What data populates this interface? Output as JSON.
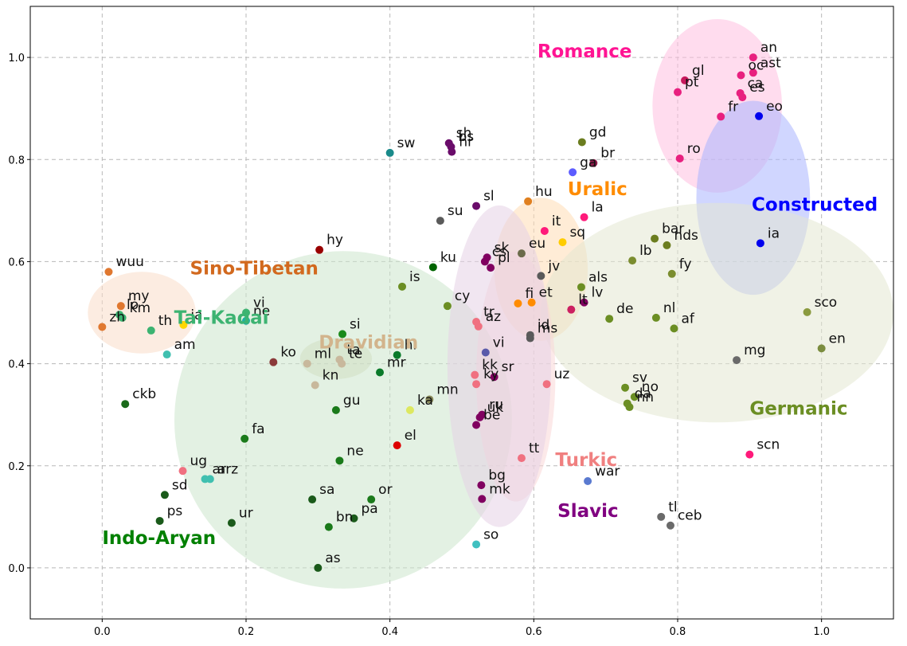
{
  "chart_data": {
    "type": "scatter",
    "title": "",
    "xlabel": "",
    "ylabel": "",
    "xlim": [
      -0.1,
      1.1
    ],
    "ylim": [
      -0.1,
      1.1
    ],
    "grid": true,
    "xticks": [
      "0.0",
      "0.2",
      "0.4",
      "0.6",
      "0.8",
      "1.0"
    ],
    "xtick_values": [
      0.0,
      0.2,
      0.4,
      0.6,
      0.8,
      1.0
    ],
    "yticks": [
      "0.0",
      "0.2",
      "0.4",
      "0.6",
      "0.8",
      "1.0"
    ],
    "ytick_values": [
      0.0,
      0.2,
      0.4,
      0.6,
      0.8,
      1.0
    ],
    "families": [
      {
        "name": "Romance",
        "color": "#ff1493",
        "label_x": 0.605,
        "label_y": 1.0,
        "ellipse": {
          "cx": 0.855,
          "cy": 0.905,
          "rx": 0.09,
          "ry": 0.17,
          "angle": 0,
          "color": "#ffc0e0"
        }
      },
      {
        "name": "Constructed",
        "color": "#0000ff",
        "label_x": 0.903,
        "label_y": 0.7,
        "ellipse": {
          "cx": 0.905,
          "cy": 0.725,
          "rx": 0.079,
          "ry": 0.19,
          "angle": 0,
          "color": "#aab4ff"
        }
      },
      {
        "name": "Uralic",
        "color": "#ff8c00",
        "label_x": 0.647,
        "label_y": 0.73,
        "ellipse": {
          "cx": 0.61,
          "cy": 0.585,
          "rx": 0.065,
          "ry": 0.14,
          "angle": 0,
          "color": "#ffdcb4"
        }
      },
      {
        "name": "Sino-Tibetan",
        "color": "#d2691e",
        "label_x": 0.122,
        "label_y": 0.575,
        "ellipse": {
          "cx": 0.055,
          "cy": 0.5,
          "rx": 0.075,
          "ry": 0.08,
          "angle": 0,
          "color": "#fadcc8"
        }
      },
      {
        "name": "Tai-Kadai",
        "color": "#3cb371",
        "label_x": 0.1,
        "label_y": 0.478,
        "ellipse": null
      },
      {
        "name": "Dravidian",
        "color": "#d2b48c",
        "label_x": 0.301,
        "label_y": 0.43,
        "ellipse": {
          "cx": 0.325,
          "cy": 0.41,
          "rx": 0.05,
          "ry": 0.04,
          "angle": 0,
          "color": "#d6d6b8"
        }
      },
      {
        "name": "Indo-Aryan",
        "color": "#008000",
        "label_x": 0.0,
        "label_y": 0.047,
        "ellipse": {
          "cx": 0.335,
          "cy": 0.29,
          "rx": 0.235,
          "ry": 0.33,
          "angle": 40,
          "color": "#cce6cc"
        }
      },
      {
        "name": "Germanic",
        "color": "#6b8e23",
        "label_x": 0.9,
        "label_y": 0.3,
        "ellipse": {
          "cx": 0.855,
          "cy": 0.5,
          "rx": 0.245,
          "ry": 0.215,
          "angle": 0,
          "color": "#e3e8d2"
        }
      },
      {
        "name": "Turkic",
        "color": "#f08080",
        "label_x": 0.63,
        "label_y": 0.2,
        "ellipse": {
          "cx": 0.575,
          "cy": 0.375,
          "rx": 0.055,
          "ry": 0.245,
          "angle": 0,
          "color": "#fad7d7"
        }
      },
      {
        "name": "Slavic",
        "color": "#800080",
        "label_x": 0.633,
        "label_y": 0.1,
        "ellipse": {
          "cx": 0.552,
          "cy": 0.395,
          "rx": 0.072,
          "ry": 0.315,
          "angle": 0,
          "color": "#e6d2e6"
        }
      }
    ],
    "points": [
      {
        "label": "an",
        "x": 0.905,
        "y": 1.0,
        "color": "#e8207f"
      },
      {
        "label": "ast",
        "x": 0.905,
        "y": 0.97,
        "color": "#e8207f"
      },
      {
        "label": "gl",
        "x": 0.81,
        "y": 0.955,
        "color": "#c7185c"
      },
      {
        "label": "oc",
        "x": 0.888,
        "y": 0.965,
        "color": "#e8207f"
      },
      {
        "label": "pt",
        "x": 0.8,
        "y": 0.932,
        "color": "#e8207f"
      },
      {
        "label": "ca",
        "x": 0.887,
        "y": 0.93,
        "color": "#e8207f"
      },
      {
        "label": "es",
        "x": 0.89,
        "y": 0.922,
        "color": "#e8207f"
      },
      {
        "label": "fr",
        "x": 0.86,
        "y": 0.884,
        "color": "#e8207f"
      },
      {
        "label": "eo",
        "x": 0.913,
        "y": 0.885,
        "color": "#0000ee"
      },
      {
        "label": "ro",
        "x": 0.803,
        "y": 0.802,
        "color": "#e8207f"
      },
      {
        "label": "ia",
        "x": 0.915,
        "y": 0.636,
        "color": "#0000ee"
      },
      {
        "label": "sh",
        "x": 0.482,
        "y": 0.832,
        "color": "#6a0c6a"
      },
      {
        "label": "bs",
        "x": 0.485,
        "y": 0.825,
        "color": "#6a0c6a"
      },
      {
        "label": "hr",
        "x": 0.486,
        "y": 0.815,
        "color": "#6a0c6a"
      },
      {
        "label": "sw",
        "x": 0.4,
        "y": 0.813,
        "color": "#1a8a8a"
      },
      {
        "label": "gd",
        "x": 0.667,
        "y": 0.834,
        "color": "#6b7d1f"
      },
      {
        "label": "br",
        "x": 0.683,
        "y": 0.793,
        "color": "#8b1a4a"
      },
      {
        "label": "ga",
        "x": 0.654,
        "y": 0.775,
        "color": "#5c5cff"
      },
      {
        "label": "sl",
        "x": 0.52,
        "y": 0.709,
        "color": "#6a0c6a"
      },
      {
        "label": "hu",
        "x": 0.592,
        "y": 0.718,
        "color": "#e08020"
      },
      {
        "label": "su",
        "x": 0.47,
        "y": 0.68,
        "color": "#5a5a5a"
      },
      {
        "label": "la",
        "x": 0.67,
        "y": 0.687,
        "color": "#ff1a7a"
      },
      {
        "label": "it",
        "x": 0.615,
        "y": 0.66,
        "color": "#ff1a7a"
      },
      {
        "label": "sq",
        "x": 0.64,
        "y": 0.638,
        "color": "#ffcc00"
      },
      {
        "label": "hy",
        "x": 0.302,
        "y": 0.623,
        "color": "#990000"
      },
      {
        "label": "wuu",
        "x": 0.009,
        "y": 0.58,
        "color": "#e07830"
      },
      {
        "label": "ku",
        "x": 0.46,
        "y": 0.589,
        "color": "#006400"
      },
      {
        "label": "sk",
        "x": 0.535,
        "y": 0.608,
        "color": "#800060"
      },
      {
        "label": "cs",
        "x": 0.532,
        "y": 0.6,
        "color": "#800060"
      },
      {
        "label": "pl",
        "x": 0.54,
        "y": 0.588,
        "color": "#800060"
      },
      {
        "label": "eu",
        "x": 0.583,
        "y": 0.616,
        "color": "#6b6b4b"
      },
      {
        "label": "bar",
        "x": 0.768,
        "y": 0.645,
        "color": "#6b7d1f"
      },
      {
        "label": "nds",
        "x": 0.785,
        "y": 0.632,
        "color": "#6b7d1f"
      },
      {
        "label": "lb",
        "x": 0.737,
        "y": 0.602,
        "color": "#7b8d2f"
      },
      {
        "label": "fy",
        "x": 0.792,
        "y": 0.576,
        "color": "#7b8d2f"
      },
      {
        "label": "jv",
        "x": 0.61,
        "y": 0.572,
        "color": "#5a5a5a"
      },
      {
        "label": "is",
        "x": 0.417,
        "y": 0.551,
        "color": "#6b8e23"
      },
      {
        "label": "als",
        "x": 0.666,
        "y": 0.55,
        "color": "#6b8e23"
      },
      {
        "label": "my",
        "x": 0.026,
        "y": 0.513,
        "color": "#e07830"
      },
      {
        "label": "lo",
        "x": 0.024,
        "y": 0.496,
        "color": "#3cb371"
      },
      {
        "label": "km",
        "x": 0.028,
        "y": 0.49,
        "color": "#3cb371"
      },
      {
        "label": "zh",
        "x": 0.0,
        "y": 0.472,
        "color": "#e07830"
      },
      {
        "label": "th",
        "x": 0.068,
        "y": 0.465,
        "color": "#3cb371"
      },
      {
        "label": "vi",
        "x": 0.2,
        "y": 0.5,
        "color": "#3cb371"
      },
      {
        "label": "ne",
        "x": 0.2,
        "y": 0.484,
        "color": "#20b0a0"
      },
      {
        "label": "ja",
        "x": 0.113,
        "y": 0.476,
        "color": "#ffd700"
      },
      {
        "label": "cy",
        "x": 0.48,
        "y": 0.513,
        "color": "#6b8e23"
      },
      {
        "label": "fi",
        "x": 0.578,
        "y": 0.518,
        "color": "#ff8c00"
      },
      {
        "label": "et",
        "x": 0.597,
        "y": 0.52,
        "color": "#ff8c00"
      },
      {
        "label": "lv",
        "x": 0.67,
        "y": 0.52,
        "color": "#800060"
      },
      {
        "label": "lt",
        "x": 0.652,
        "y": 0.506,
        "color": "#cc2060"
      },
      {
        "label": "de",
        "x": 0.705,
        "y": 0.488,
        "color": "#6b8e23"
      },
      {
        "label": "nl",
        "x": 0.77,
        "y": 0.49,
        "color": "#6b8e23"
      },
      {
        "label": "af",
        "x": 0.795,
        "y": 0.469,
        "color": "#6b8e23"
      },
      {
        "label": "sco",
        "x": 0.98,
        "y": 0.501,
        "color": "#8a9a3f"
      },
      {
        "label": "en",
        "x": 1.0,
        "y": 0.43,
        "color": "#7b8d3f"
      },
      {
        "label": "tr",
        "x": 0.52,
        "y": 0.482,
        "color": "#f07080"
      },
      {
        "label": "az",
        "x": 0.523,
        "y": 0.473,
        "color": "#f07080"
      },
      {
        "label": "id",
        "x": 0.595,
        "y": 0.456,
        "color": "#5a5a5a"
      },
      {
        "label": "ms",
        "x": 0.595,
        "y": 0.45,
        "color": "#5a5a5a"
      },
      {
        "label": "si",
        "x": 0.334,
        "y": 0.458,
        "color": "#1a8a1a"
      },
      {
        "label": "vi",
        "x": 0.533,
        "y": 0.422,
        "color": "#5a5aaa"
      },
      {
        "label": "am",
        "x": 0.09,
        "y": 0.418,
        "color": "#40c0b0"
      },
      {
        "label": "ko",
        "x": 0.238,
        "y": 0.403,
        "color": "#8b3a3a"
      },
      {
        "label": "ml",
        "x": 0.285,
        "y": 0.4,
        "color": "#c8b89c"
      },
      {
        "label": "ta",
        "x": 0.33,
        "y": 0.408,
        "color": "#c8b89c"
      },
      {
        "label": "te",
        "x": 0.333,
        "y": 0.4,
        "color": "#c8b89c"
      },
      {
        "label": "hi",
        "x": 0.41,
        "y": 0.417,
        "color": "#0a7a2a"
      },
      {
        "label": "mr",
        "x": 0.386,
        "y": 0.383,
        "color": "#0a7a2a"
      },
      {
        "label": "mg",
        "x": 0.882,
        "y": 0.407,
        "color": "#6a6a6a"
      },
      {
        "label": "kk",
        "x": 0.518,
        "y": 0.378,
        "color": "#f07080"
      },
      {
        "label": "sr",
        "x": 0.545,
        "y": 0.374,
        "color": "#800060"
      },
      {
        "label": "kn",
        "x": 0.296,
        "y": 0.358,
        "color": "#c8b89c"
      },
      {
        "label": "ky",
        "x": 0.52,
        "y": 0.36,
        "color": "#f07080"
      },
      {
        "label": "uz",
        "x": 0.618,
        "y": 0.36,
        "color": "#f07080"
      },
      {
        "label": "sv",
        "x": 0.727,
        "y": 0.353,
        "color": "#6b8e23"
      },
      {
        "label": "no",
        "x": 0.74,
        "y": 0.335,
        "color": "#6b8e23"
      },
      {
        "label": "da",
        "x": 0.73,
        "y": 0.322,
        "color": "#6b8e23"
      },
      {
        "label": "nn",
        "x": 0.733,
        "y": 0.315,
        "color": "#6b8e23"
      },
      {
        "label": "ckb",
        "x": 0.032,
        "y": 0.321,
        "color": "#1a6a1a"
      },
      {
        "label": "mn",
        "x": 0.455,
        "y": 0.33,
        "color": "#8a8a5a"
      },
      {
        "label": "ka",
        "x": 0.428,
        "y": 0.309,
        "color": "#dde860"
      },
      {
        "label": "gu",
        "x": 0.325,
        "y": 0.309,
        "color": "#1a7a1a"
      },
      {
        "label": "uk",
        "x": 0.525,
        "y": 0.295,
        "color": "#800060"
      },
      {
        "label": "ru",
        "x": 0.528,
        "y": 0.3,
        "color": "#800060"
      },
      {
        "label": "be",
        "x": 0.52,
        "y": 0.28,
        "color": "#800060"
      },
      {
        "label": "fa",
        "x": 0.198,
        "y": 0.253,
        "color": "#1a7a1a"
      },
      {
        "label": "el",
        "x": 0.41,
        "y": 0.24,
        "color": "#dd0000"
      },
      {
        "label": "scn",
        "x": 0.9,
        "y": 0.222,
        "color": "#ff1a7a"
      },
      {
        "label": "ne",
        "x": 0.33,
        "y": 0.21,
        "color": "#1a7a1a"
      },
      {
        "label": "tt",
        "x": 0.583,
        "y": 0.215,
        "color": "#f07080"
      },
      {
        "label": "ug",
        "x": 0.112,
        "y": 0.19,
        "color": "#f07080"
      },
      {
        "label": "ar",
        "x": 0.143,
        "y": 0.174,
        "color": "#40c0b0"
      },
      {
        "label": "arz",
        "x": 0.15,
        "y": 0.174,
        "color": "#40c0b0"
      },
      {
        "label": "war",
        "x": 0.675,
        "y": 0.17,
        "color": "#5a7ad0"
      },
      {
        "label": "bg",
        "x": 0.527,
        "y": 0.162,
        "color": "#800060"
      },
      {
        "label": "sd",
        "x": 0.087,
        "y": 0.143,
        "color": "#1a5a1a"
      },
      {
        "label": "sa",
        "x": 0.292,
        "y": 0.134,
        "color": "#1a5a1a"
      },
      {
        "label": "or",
        "x": 0.374,
        "y": 0.134,
        "color": "#1a7a1a"
      },
      {
        "label": "mk",
        "x": 0.528,
        "y": 0.135,
        "color": "#800060"
      },
      {
        "label": "pa",
        "x": 0.35,
        "y": 0.097,
        "color": "#1a5a1a"
      },
      {
        "label": "tl",
        "x": 0.777,
        "y": 0.1,
        "color": "#6a6a6a"
      },
      {
        "label": "ceb",
        "x": 0.79,
        "y": 0.083,
        "color": "#6a6a6a"
      },
      {
        "label": "ps",
        "x": 0.08,
        "y": 0.092,
        "color": "#1a5a1a"
      },
      {
        "label": "ur",
        "x": 0.18,
        "y": 0.088,
        "color": "#1a5a1a"
      },
      {
        "label": "bn",
        "x": 0.315,
        "y": 0.08,
        "color": "#1a7a1a"
      },
      {
        "label": "so",
        "x": 0.52,
        "y": 0.046,
        "color": "#40c0c0"
      },
      {
        "label": "as",
        "x": 0.3,
        "y": 0.0,
        "color": "#1a5a1a"
      }
    ]
  }
}
